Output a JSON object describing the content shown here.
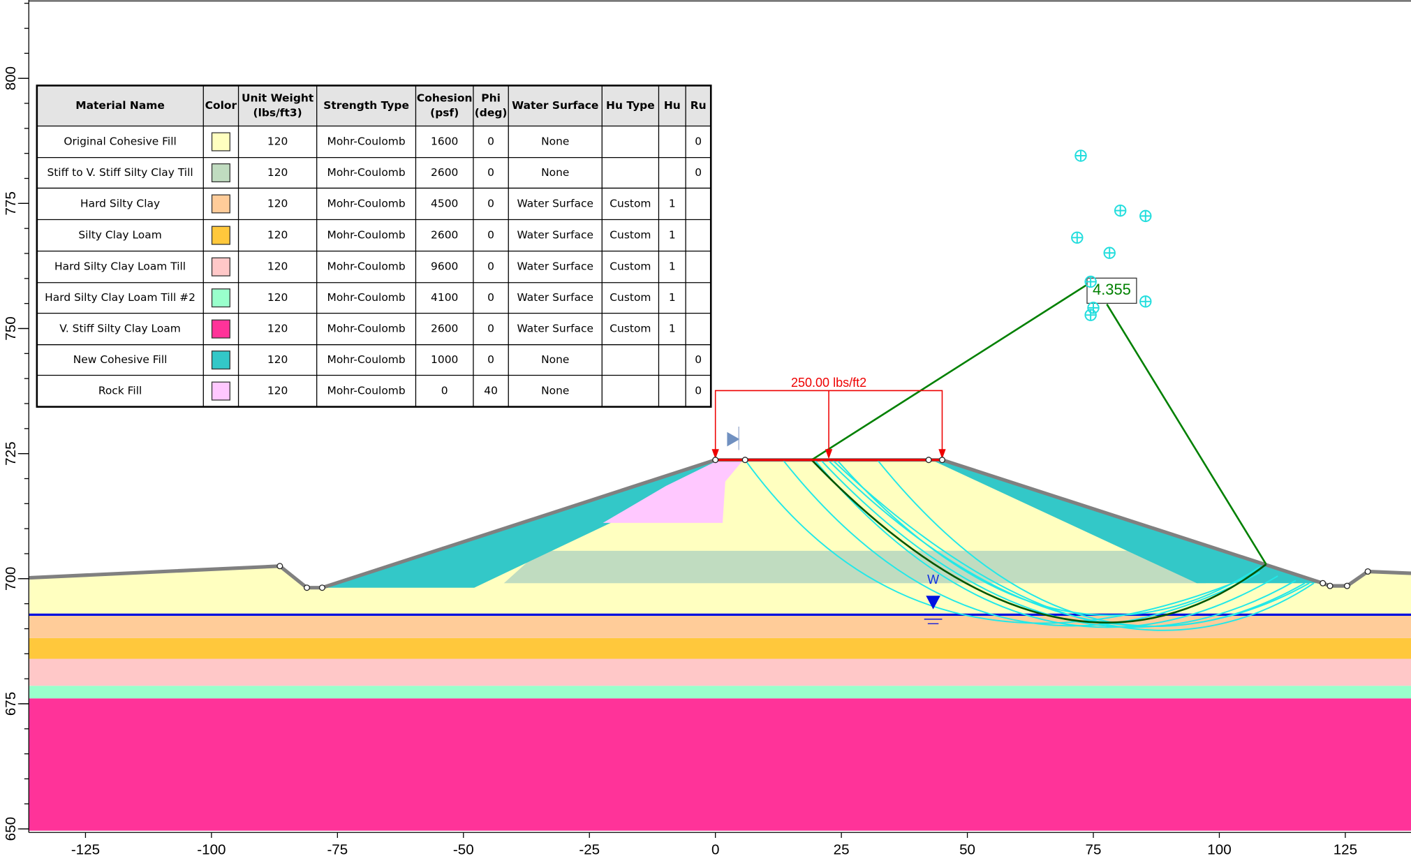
{
  "table": {
    "headers": [
      [
        "Material Name"
      ],
      [
        "Color"
      ],
      [
        "Unit Weight",
        "(lbs/ft3)"
      ],
      [
        "Strength Type"
      ],
      [
        "Cohesion",
        "(psf)"
      ],
      [
        "Phi",
        "(deg)"
      ],
      [
        "Water Surface"
      ],
      [
        "Hu Type"
      ],
      [
        "Hu"
      ],
      [
        "Ru"
      ]
    ],
    "rows": [
      {
        "name": "Original Cohesive Fill",
        "color": "#ffffc0",
        "unit_weight": 120,
        "strength_type": "Mohr-Coulomb",
        "cohesion": 1600,
        "phi": 0,
        "water_surface": "None",
        "ru": 0
      },
      {
        "name": "Stiff to V. Stiff Silty Clay Till",
        "color": "#c0dcc0",
        "unit_weight": 120,
        "strength_type": "Mohr-Coulomb",
        "cohesion": 2600,
        "phi": 0,
        "water_surface": "None",
        "ru": 0
      },
      {
        "name": "Hard Silty Clay",
        "color": "#ffcc99",
        "unit_weight": 120,
        "strength_type": "Mohr-Coulomb",
        "cohesion": 4500,
        "phi": 0,
        "water_surface": "Water Surface",
        "hu_type": "Custom",
        "hu": 1
      },
      {
        "name": "Silty Clay Loam",
        "color": "#ffc83c",
        "unit_weight": 120,
        "strength_type": "Mohr-Coulomb",
        "cohesion": 2600,
        "phi": 0,
        "water_surface": "Water Surface",
        "hu_type": "Custom",
        "hu": 1
      },
      {
        "name": "Hard Silty Clay Loam Till",
        "color": "#ffc8c8",
        "unit_weight": 120,
        "strength_type": "Mohr-Coulomb",
        "cohesion": 9600,
        "phi": 0,
        "water_surface": "Water Surface",
        "hu_type": "Custom",
        "hu": 1
      },
      {
        "name": "Hard Silty Clay Loam Till #2",
        "color": "#99ffcc",
        "unit_weight": 120,
        "strength_type": "Mohr-Coulomb",
        "cohesion": 4100,
        "phi": 0,
        "water_surface": "Water Surface",
        "hu_type": "Custom",
        "hu": 1
      },
      {
        "name": "V. Stiff Silty Clay Loam",
        "color": "#ff3399",
        "unit_weight": 120,
        "strength_type": "Mohr-Coulomb",
        "cohesion": 2600,
        "phi": 0,
        "water_surface": "Water Surface",
        "hu_type": "Custom",
        "hu": 1
      },
      {
        "name": "New Cohesive Fill",
        "color": "#33c8c8",
        "unit_weight": 120,
        "strength_type": "Mohr-Coulomb",
        "cohesion": 1000,
        "phi": 0,
        "water_surface": "None",
        "ru": 0
      },
      {
        "name": "Rock Fill",
        "color": "#ffc8ff",
        "unit_weight": 120,
        "strength_type": "Mohr-Coulomb",
        "cohesion": 0,
        "phi": 40,
        "water_surface": "None",
        "ru": 0
      }
    ]
  },
  "x_axis": {
    "ticks": [
      -125,
      -100,
      -75,
      -50,
      -25,
      0,
      25,
      50,
      75,
      100,
      125
    ]
  },
  "y_axis": {
    "ticks": [
      650,
      675,
      700,
      725,
      750,
      775,
      800
    ]
  },
  "factor_of_safety": "4.355",
  "load_label": "250.00 lbs/ft2",
  "water_label": "W"
}
